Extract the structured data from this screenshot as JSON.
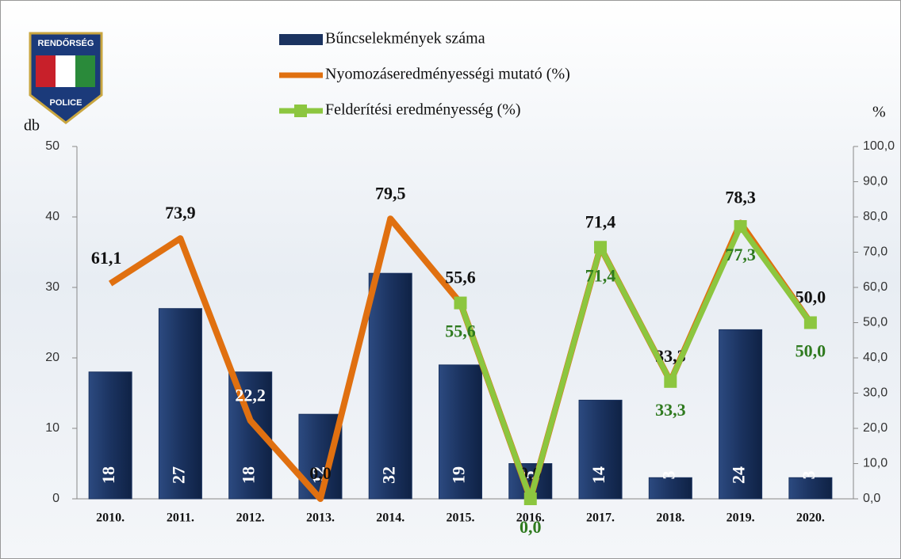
{
  "chart_data": {
    "type": "bar",
    "annotations": [
      "RENDŐRSÉG",
      "POLICE"
    ],
    "y_label": "db",
    "y2_label": "%",
    "categories": [
      "2010.",
      "2011.",
      "2012.",
      "2013.",
      "2014.",
      "2015.",
      "2016.",
      "2017.",
      "2018.",
      "2019.",
      "2020."
    ],
    "series": [
      {
        "name": "Bűncselekmények száma",
        "type": "bar",
        "color": "#1b3360",
        "values": [
          18,
          27,
          18,
          12,
          32,
          19,
          5,
          14,
          3,
          24,
          3
        ]
      },
      {
        "name": "Nyomozáseredményességi mutató (%)",
        "type": "line",
        "axis": "y2",
        "color": "#e07010",
        "values": [
          61.1,
          73.9,
          22.2,
          0.0,
          79.5,
          55.6,
          0.0,
          71.4,
          33.3,
          78.3,
          50.0
        ],
        "value_labels": [
          "61,1",
          "73,9",
          "22,2",
          "0,0",
          "79,5",
          "55,6",
          "0,0",
          "71,4",
          "33,3",
          "78,3",
          "50,0"
        ]
      },
      {
        "name": "Felderítési eredményesség (%)",
        "type": "line",
        "axis": "y2",
        "color": "#8cc63f",
        "values": [
          null,
          null,
          null,
          null,
          null,
          55.6,
          0.0,
          71.4,
          33.3,
          77.3,
          50.0
        ],
        "value_labels": [
          null,
          null,
          null,
          null,
          null,
          "55,6",
          "0,0",
          "71,4",
          "33,3",
          "77,3",
          "50,0"
        ]
      }
    ],
    "ylim": [
      0,
      50
    ],
    "yticks": [
      0,
      10,
      20,
      30,
      40,
      50
    ],
    "y2lim": [
      0,
      100
    ],
    "y2ticks": [
      {
        "value": 0,
        "label": "0,0"
      },
      {
        "value": 10,
        "label": "10,0"
      },
      {
        "value": 20,
        "label": "20,0"
      },
      {
        "value": 30,
        "label": "30,0"
      },
      {
        "value": 40,
        "label": "40,0"
      },
      {
        "value": 50,
        "label": "50,0"
      },
      {
        "value": 60,
        "label": "60,0"
      },
      {
        "value": 70,
        "label": "70,0"
      },
      {
        "value": 80,
        "label": "80,0"
      },
      {
        "value": 90,
        "label": "90,0"
      },
      {
        "value": 100,
        "label": "100,0"
      }
    ]
  }
}
